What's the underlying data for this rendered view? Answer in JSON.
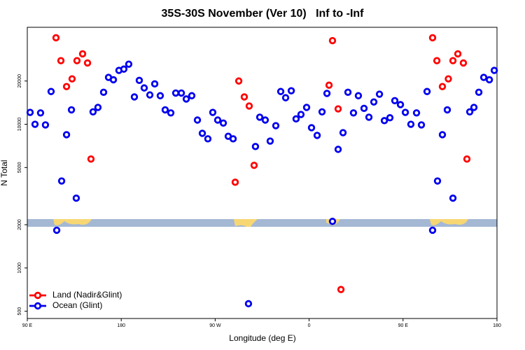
{
  "chart_data": {
    "type": "scatter",
    "title": "35S-30S November (Ver 10)   Inf to -Inf",
    "x_label": "Longitude (deg E)",
    "y_label": "N Total",
    "log_y": true,
    "legend": "lower left",
    "xlim": [
      90,
      540
    ],
    "ylim": [
      445,
      47300
    ],
    "xticks": [
      {
        "value": 90,
        "label": "90 E"
      },
      180,
      {
        "value": 270,
        "label": "90 W"
      },
      {
        "value": 360,
        "label": "0"
      },
      {
        "value": 450,
        "label": "90 E"
      },
      {
        "value": 540,
        "label": "180"
      }
    ],
    "yticks": [
      500,
      1000,
      2000,
      5000,
      10000,
      20000
    ],
    "series": [
      {
        "name": "Land (Nadir&Glint)",
        "color": "#ff0000",
        "x": [
          117.5,
          122.2,
          127.6,
          132.9,
          137.6,
          143.0,
          147.7,
          151.0,
          289.2,
          292.6,
          297.9,
          302.6,
          307.3,
          379.1,
          382.4,
          387.8,
          390.5,
          478.3,
          482.4,
          487.7,
          493.4,
          497.8,
          502.5,
          507.8,
          511.2
        ],
        "values": [
          40000,
          27700,
          18300,
          20700,
          27700,
          30900,
          26700,
          5730,
          3950,
          20000,
          15500,
          13400,
          5180,
          18700,
          38200,
          12800,
          708,
          40000,
          27700,
          18300,
          20700,
          27700,
          30900,
          26700,
          5730
        ]
      },
      {
        "name": "Ocean (Glint)",
        "color": "#0000ee",
        "x": [
          92.7,
          97.4,
          102.7,
          107.4,
          112.8,
          118.2,
          122.9,
          127.6,
          132.3,
          136.9,
          153.0,
          157.7,
          163.1,
          167.8,
          172.5,
          177.8,
          182.5,
          187.2,
          192.6,
          197.3,
          202.0,
          207.4,
          212.1,
          217.4,
          222.1,
          227.5,
          232.2,
          237.6,
          242.3,
          247.6,
          253.0,
          257.7,
          263.0,
          267.7,
          272.4,
          277.8,
          282.5,
          287.2,
          301.9,
          308.6,
          312.7,
          318.0,
          322.7,
          328.1,
          332.8,
          337.5,
          342.9,
          347.5,
          352.2,
          357.6,
          362.3,
          367.7,
          372.4,
          377.1,
          382.4,
          387.8,
          392.5,
          397.2,
          402.5,
          407.2,
          412.6,
          417.3,
          422.0,
          427.4,
          432.1,
          437.4,
          442.1,
          447.5,
          452.2,
          457.5,
          462.9,
          467.6,
          473.0,
          478.3,
          483.0,
          487.7,
          492.4,
          497.8,
          513.9,
          517.9,
          522.6,
          527.3,
          532.7,
          537.4
        ],
        "values": [
          12100,
          10000,
          12000,
          9900,
          16900,
          1830,
          4030,
          8460,
          12600,
          3060,
          12200,
          13100,
          16700,
          21200,
          20400,
          23700,
          24200,
          26200,
          15500,
          20200,
          17900,
          16000,
          19100,
          15800,
          12600,
          12000,
          16500,
          16500,
          15000,
          15800,
          10700,
          8650,
          7920,
          12100,
          10700,
          10200,
          8250,
          7920,
          564,
          7000,
          11200,
          10700,
          7640,
          9780,
          16900,
          15300,
          17100,
          10900,
          11700,
          13100,
          9460,
          8370,
          12200,
          16400,
          2110,
          6690,
          8740,
          16700,
          12000,
          15800,
          12900,
          11200,
          14300,
          16200,
          10600,
          11100,
          14600,
          13700,
          12100,
          10000,
          12000,
          9900,
          16900,
          1830,
          4030,
          8460,
          12600,
          3060,
          12200,
          13100,
          16700,
          21200,
          20400,
          23700
        ]
      }
    ]
  }
}
